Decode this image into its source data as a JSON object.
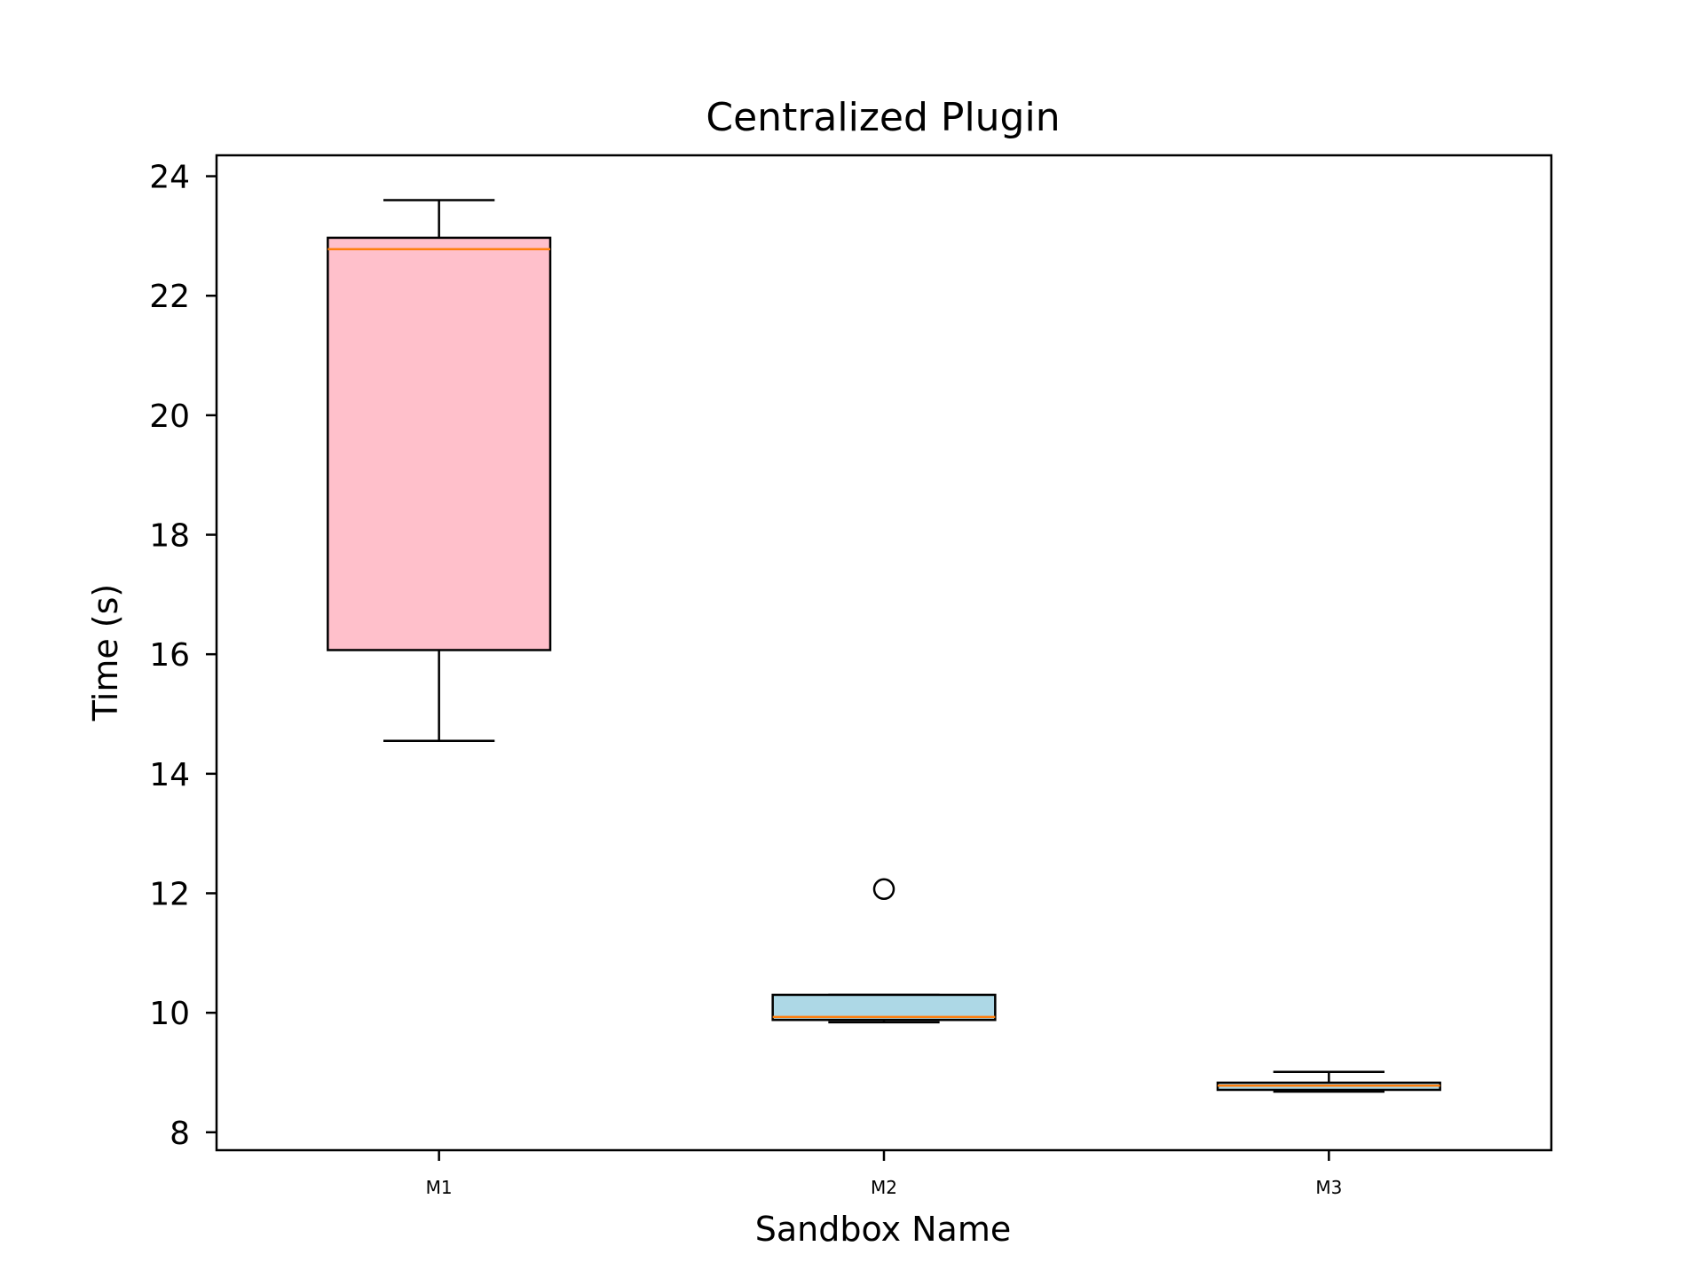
{
  "chart_data": {
    "type": "box",
    "title": "Centralized Plugin",
    "xlabel": "Sandbox Name",
    "ylabel": "Time (s)",
    "ylim": [
      7.7,
      24.35
    ],
    "yticks": [
      8,
      10,
      12,
      14,
      16,
      18,
      20,
      22,
      24
    ],
    "grid": false,
    "median_color": "#ff7f0e",
    "series": [
      {
        "name": "M1",
        "whisker_low": 14.55,
        "q1": 16.07,
        "median": 22.78,
        "q3": 22.97,
        "whisker_high": 23.6,
        "outliers": [],
        "color": "#ffc0cb"
      },
      {
        "name": "M2",
        "whisker_low": 9.84,
        "q1": 9.88,
        "median": 9.93,
        "q3": 10.3,
        "whisker_high": 10.3,
        "outliers": [
          12.07
        ],
        "color": "#add8e6"
      },
      {
        "name": "M3",
        "whisker_low": 8.68,
        "q1": 8.71,
        "median": 8.78,
        "q3": 8.83,
        "whisker_high": 9.01,
        "outliers": [],
        "color": "#add8e6"
      }
    ]
  }
}
